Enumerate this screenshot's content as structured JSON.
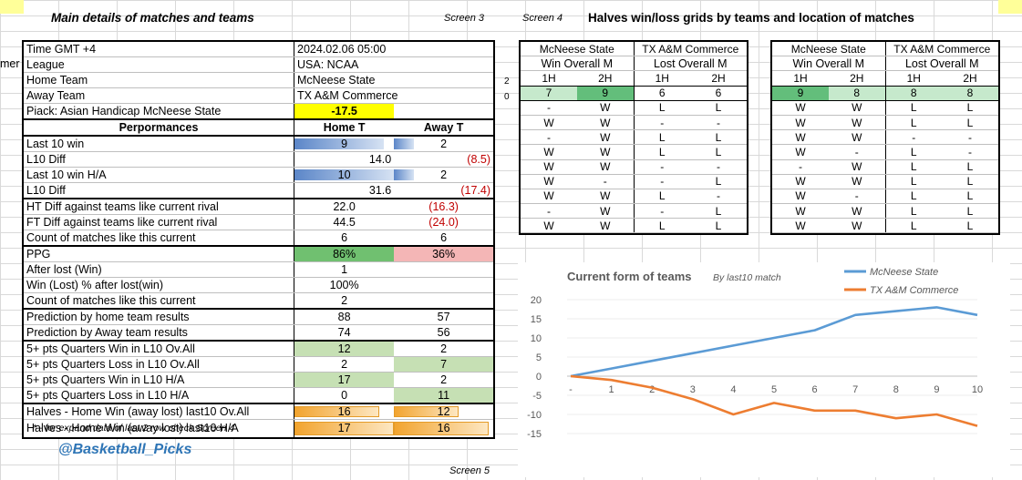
{
  "header": {
    "main_title": "Main details of matches and teams",
    "screen3": "Screen 3",
    "screen4": "Screen 4",
    "grids_title": "Halves win/loss grids by teams and location of matches",
    "cut_label": "mer",
    "footnote": "* - for expand data of last 2 row check Screen 4",
    "handle": "@Basketball_Picks",
    "screen5": "Screen 5",
    "side_2": "2",
    "side_0": "0"
  },
  "main": {
    "time_label": "Time  GMT +4",
    "time_value": "2024.02.06 05:00",
    "league_label": "League",
    "league_value": "USA: NCAA",
    "home_label": "Home Team",
    "home_value": "McNeese State",
    "away_label": "Away Team",
    "away_value": "TX A&M Commerce",
    "piack_label": "Piack: Asian Handicap McNeese State",
    "piack_value": "-17.5",
    "perf_label": "Perpormances",
    "home_t": "Home T",
    "away_t": "Away T",
    "rows": {
      "last10": {
        "label": "Last 10  win",
        "home": "9",
        "away": "2",
        "home_frac": 0.9,
        "away_frac": 0.2
      },
      "l10diff": {
        "label": "L10 Diff",
        "home": "14.0",
        "away": "(8.5)"
      },
      "last10ha": {
        "label": "Last 10  win H/A",
        "home": "10",
        "away": "2",
        "home_frac": 1.0,
        "away_frac": 0.2
      },
      "l10diff2": {
        "label": "L10 Diff",
        "home": "31.6",
        "away": "(17.4)"
      },
      "htdiff": {
        "label": "HT Diff against teams like current rival",
        "home": "22.0",
        "away": "(16.3)"
      },
      "ftdiff": {
        "label": "FT Diff against teams like current rival",
        "home": "44.5",
        "away": "(24.0)"
      },
      "count1": {
        "label": "Count of matches like this current",
        "home": "6",
        "away": "6"
      },
      "ppg": {
        "label": "PPG",
        "home": "86%",
        "away": "36%"
      },
      "afterlost": {
        "label": "After lost (Win)",
        "home": "1"
      },
      "winlost": {
        "label": "Win (Lost) % after lost(win)",
        "home": "100%"
      },
      "count2": {
        "label": "Count of matches like this current",
        "home": "2"
      },
      "predhome": {
        "label": "Prediction by home team results",
        "home": "88",
        "away": "57"
      },
      "predaway": {
        "label": "Prediction by Away team results",
        "home": "74",
        "away": "56"
      },
      "q1": {
        "label": "5+ pts Quarters Win in L10 Ov.All",
        "home": "12",
        "away": "2"
      },
      "q2": {
        "label": "5+ pts Quarters Loss in L10 Ov.All",
        "home": "2",
        "away": "7"
      },
      "q3": {
        "label": "5+ pts Quarters Win in L10 H/A",
        "home": "17",
        "away": "2"
      },
      "q4": {
        "label": "5+ pts Quarters Loss in L10 H/A",
        "home": "0",
        "away": "11"
      },
      "halves1": {
        "label": "Halves - Home Win  (away lost) last10 Ov.All",
        "home": "16",
        "away": "12",
        "home_frac": 0.85,
        "away_frac": 0.65
      },
      "halves2": {
        "label": "Halves - Home Win  (away lost) last10 H/A",
        "home": "17",
        "away": "16",
        "home_frac": 1.0,
        "away_frac": 0.95
      }
    }
  },
  "grid_left": {
    "team1": "McNeese State",
    "team2": "TX A&M Commerce",
    "sub1": "Win Overall M",
    "sub2": "Lost Overall M",
    "halves": [
      "1H",
      "2H",
      "1H",
      "2H"
    ],
    "totals": [
      "7",
      "9",
      "6",
      "6"
    ],
    "rows": [
      [
        "-",
        "W",
        "L",
        "L"
      ],
      [
        "W",
        "W",
        "-",
        "-"
      ],
      [
        "-",
        "W",
        "L",
        "L"
      ],
      [
        "W",
        "W",
        "L",
        "L"
      ],
      [
        "W",
        "W",
        "-",
        "-"
      ],
      [
        "W",
        "-",
        "-",
        "L"
      ],
      [
        "W",
        "W",
        "L",
        "-"
      ],
      [
        "-",
        "W",
        "-",
        "L"
      ],
      [
        "W",
        "W",
        "L",
        "L"
      ]
    ]
  },
  "grid_right": {
    "team1": "McNeese State",
    "team2": "TX A&M Commerce",
    "sub1": "Win Overall M",
    "sub2": "Lost Overall M",
    "halves": [
      "1H",
      "2H",
      "1H",
      "2H"
    ],
    "totals": [
      "9",
      "8",
      "8",
      "8"
    ],
    "rows": [
      [
        "W",
        "W",
        "L",
        "L"
      ],
      [
        "W",
        "W",
        "L",
        "L"
      ],
      [
        "W",
        "W",
        "-",
        "-"
      ],
      [
        "W",
        "-",
        "L",
        "-"
      ],
      [
        "-",
        "W",
        "L",
        "L"
      ],
      [
        "W",
        "W",
        "L",
        "L"
      ],
      [
        "W",
        "-",
        "L",
        "L"
      ],
      [
        "W",
        "W",
        "L",
        "L"
      ],
      [
        "W",
        "W",
        "L",
        "L"
      ]
    ]
  },
  "chart_data": {
    "type": "line",
    "title": "Current form of  teams",
    "subtitle": "By last10 match",
    "categories": [
      "-",
      "1",
      "2",
      "3",
      "4",
      "5",
      "6",
      "7",
      "8",
      "9",
      "10"
    ],
    "ylim": [
      -15,
      20
    ],
    "yticks": [
      "20",
      "15",
      "10",
      "5",
      "0",
      "-5",
      "-10",
      "-15"
    ],
    "legend_position": "top-right",
    "series": [
      {
        "name": "McNeese State",
        "color": "#5b9bd5",
        "values": [
          0,
          2,
          4,
          6,
          8,
          10,
          12,
          16,
          17,
          18,
          16
        ]
      },
      {
        "name": "TX A&M Commerce",
        "color": "#ed7d31",
        "values": [
          0,
          -1,
          -3,
          -6,
          -10,
          -7,
          -9,
          -9,
          -11,
          -10,
          -13
        ]
      }
    ]
  }
}
